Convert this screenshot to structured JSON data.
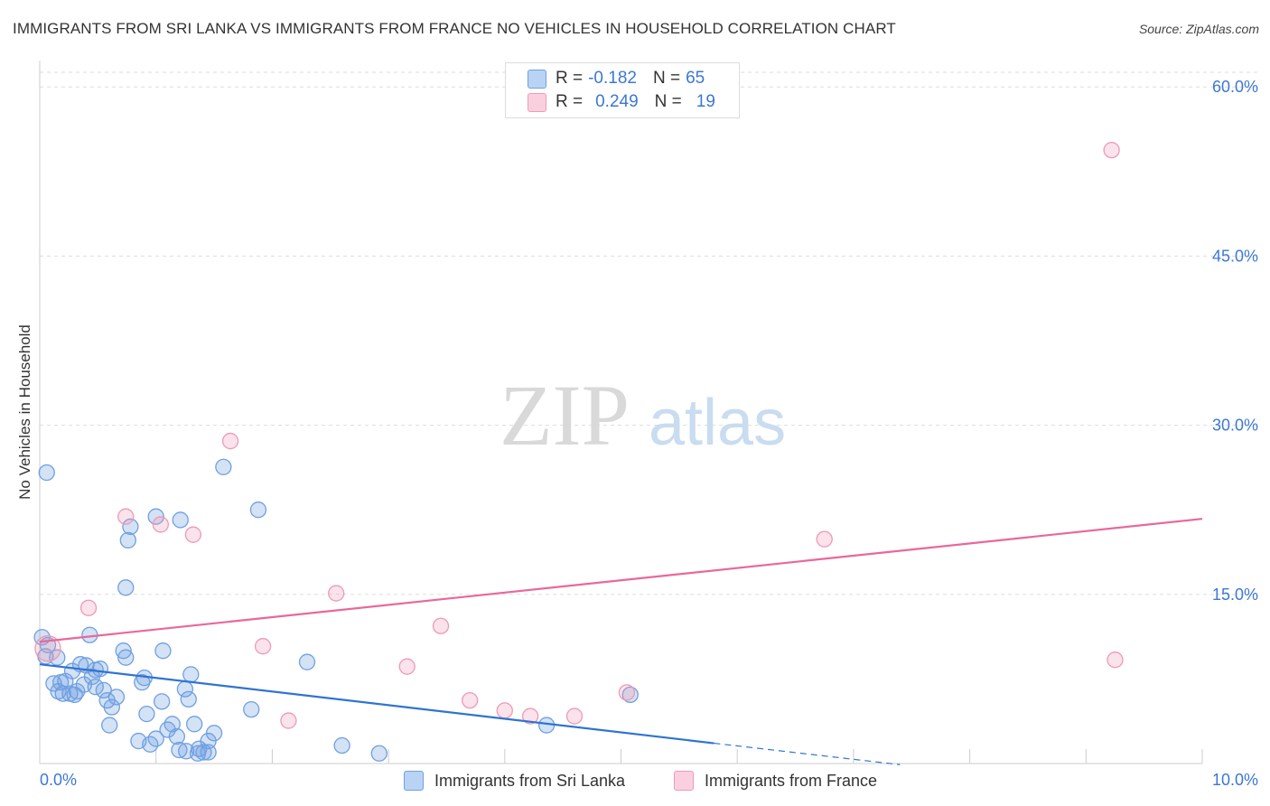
{
  "chart_data": {
    "type": "scatter",
    "title": "IMMIGRANTS FROM SRI LANKA VS IMMIGRANTS FROM FRANCE NO VEHICLES IN HOUSEHOLD CORRELATION CHART",
    "source": "Source: ZipAtlas.com",
    "ylabel": "No Vehicles in Household",
    "xlim": [
      0,
      10
    ],
    "ylim": [
      0,
      60
    ],
    "x_tick_labels": [
      "0.0%",
      "10.0%"
    ],
    "y_ticks": [
      15,
      30,
      45,
      60
    ],
    "y_tick_labels": [
      "15.0%",
      "30.0%",
      "45.0%",
      "60.0%"
    ],
    "grid": true,
    "watermark": "ZIPatlas",
    "colors": {
      "sri_lanka": "#6fa0e0",
      "france": "#ee9ab5",
      "sri_lanka_line": "#2f74d0",
      "france_line": "#e8689a",
      "accent": "#3b78d4"
    },
    "legend_top": {
      "rows": [
        {
          "r_label": "R =",
          "r_value": "-0.182",
          "n_label": "N =",
          "n_value": "65"
        },
        {
          "r_label": "R =",
          "r_value": "0.249",
          "n_label": "N =",
          "n_value": "19"
        }
      ]
    },
    "series": [
      {
        "name": "Immigrants from Sri Lanka",
        "trend": {
          "x0": 0,
          "y0": 8.8,
          "x1": 5.8,
          "y1": 1.8,
          "dash_x1": 7.4,
          "dash_y1": -0.1
        },
        "points": [
          [
            0.06,
            25.8
          ],
          [
            0.02,
            11.2
          ],
          [
            0.05,
            9.5
          ],
          [
            0.07,
            10.5
          ],
          [
            0.15,
            9.4
          ],
          [
            0.12,
            7.1
          ],
          [
            0.18,
            7.2
          ],
          [
            0.22,
            7.3
          ],
          [
            0.16,
            6.4
          ],
          [
            0.26,
            6.2
          ],
          [
            0.3,
            6.1
          ],
          [
            0.2,
            6.2
          ],
          [
            0.28,
            8.2
          ],
          [
            0.35,
            8.8
          ],
          [
            0.4,
            8.7
          ],
          [
            0.38,
            7.0
          ],
          [
            0.45,
            7.7
          ],
          [
            0.52,
            8.4
          ],
          [
            0.48,
            6.8
          ],
          [
            0.55,
            6.5
          ],
          [
            0.58,
            5.6
          ],
          [
            0.62,
            5.0
          ],
          [
            0.66,
            5.9
          ],
          [
            0.6,
            3.4
          ],
          [
            0.43,
            11.4
          ],
          [
            0.48,
            8.3
          ],
          [
            0.72,
            10.0
          ],
          [
            0.74,
            9.4
          ],
          [
            0.78,
            21.0
          ],
          [
            0.76,
            19.8
          ],
          [
            0.74,
            15.6
          ],
          [
            0.88,
            7.2
          ],
          [
            0.9,
            7.6
          ],
          [
            0.92,
            4.4
          ],
          [
            1.0,
            21.9
          ],
          [
            1.06,
            10.0
          ],
          [
            1.05,
            5.5
          ],
          [
            1.1,
            3.0
          ],
          [
            1.14,
            3.5
          ],
          [
            1.18,
            2.4
          ],
          [
            1.21,
            21.6
          ],
          [
            1.25,
            6.6
          ],
          [
            1.28,
            5.7
          ],
          [
            1.3,
            7.9
          ],
          [
            1.33,
            3.5
          ],
          [
            1.2,
            1.2
          ],
          [
            1.26,
            1.1
          ],
          [
            1.36,
            0.9
          ],
          [
            1.41,
            1.0
          ],
          [
            1.45,
            2.0
          ],
          [
            1.5,
            2.7
          ],
          [
            1.58,
            26.3
          ],
          [
            1.82,
            4.8
          ],
          [
            1.88,
            22.5
          ],
          [
            2.3,
            9.0
          ],
          [
            2.6,
            1.6
          ],
          [
            2.92,
            0.9
          ],
          [
            4.36,
            3.4
          ],
          [
            5.08,
            6.1
          ],
          [
            0.85,
            2.0
          ],
          [
            0.95,
            1.7
          ],
          [
            1.0,
            2.2
          ],
          [
            1.45,
            1.0
          ],
          [
            0.32,
            6.4
          ],
          [
            1.37,
            1.3
          ]
        ]
      },
      {
        "name": "Immigrants from France",
        "trend": {
          "x0": 0,
          "y0": 10.8,
          "x1": 10,
          "y1": 21.7
        },
        "points": [
          [
            0.07,
            10.2
          ],
          [
            0.42,
            13.8
          ],
          [
            0.74,
            21.9
          ],
          [
            1.04,
            21.2
          ],
          [
            1.32,
            20.3
          ],
          [
            1.64,
            28.6
          ],
          [
            1.92,
            10.4
          ],
          [
            2.14,
            3.8
          ],
          [
            2.55,
            15.1
          ],
          [
            3.16,
            8.6
          ],
          [
            3.45,
            12.2
          ],
          [
            3.7,
            5.6
          ],
          [
            4.0,
            4.7
          ],
          [
            4.22,
            4.2
          ],
          [
            4.6,
            4.2
          ],
          [
            5.05,
            6.3
          ],
          [
            6.75,
            19.9
          ],
          [
            9.22,
            54.4
          ],
          [
            9.25,
            9.2
          ]
        ]
      }
    ]
  }
}
